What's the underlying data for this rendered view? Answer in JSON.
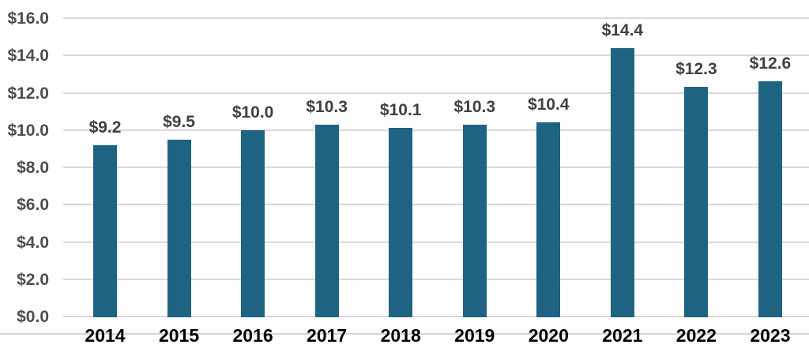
{
  "chart_data": {
    "type": "bar",
    "categories": [
      "2014",
      "2015",
      "2016",
      "2017",
      "2018",
      "2019",
      "2020",
      "2021",
      "2022",
      "2023"
    ],
    "values": [
      9.2,
      9.5,
      10.0,
      10.3,
      10.1,
      10.3,
      10.4,
      14.4,
      12.3,
      12.6
    ],
    "data_labels": [
      "$9.2",
      "$9.5",
      "$10.0",
      "$10.3",
      "$10.1",
      "$10.3",
      "$10.4",
      "$14.4",
      "$12.3",
      "$12.6"
    ],
    "y_ticks": [
      16,
      14,
      12,
      10,
      8,
      6,
      4,
      2,
      0
    ],
    "y_tick_labels": [
      "$16.0",
      "$14.0",
      "$12.0",
      "$10.0",
      "$8.0",
      "$6.0",
      "$4.0",
      "$2.0",
      "$0.0"
    ],
    "ylim": [
      0,
      16
    ],
    "grid": true,
    "legend": "none",
    "colors": {
      "bar": "#1F6383",
      "gridline": "#D9D9D9",
      "baseline": "#D4D4D4",
      "y_tick_label": "#4D4D4D",
      "data_label": "#404040",
      "x_tick_label": "#000000",
      "background": "#FFFFFF"
    }
  }
}
